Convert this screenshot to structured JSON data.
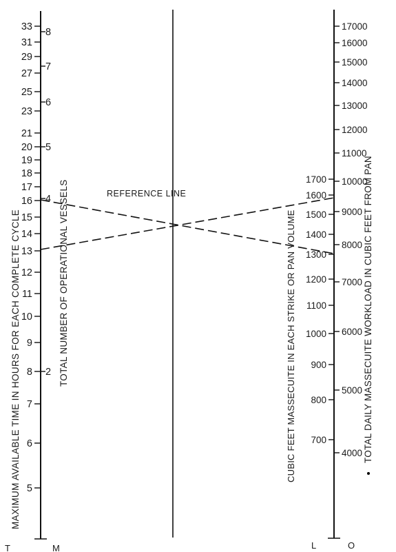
{
  "scales": {
    "T": {
      "letter": "T",
      "title": "MAXIMUM AVAILABLE TIME IN HOURS FOR EACH COMPLETE CYCLE",
      "ticks": [
        "33",
        "31",
        "29",
        "27",
        "25",
        "23",
        "21",
        "20",
        "19",
        "18",
        "17",
        "16",
        "15",
        "14",
        "13",
        "12",
        "11",
        "10",
        "9",
        "8",
        "7",
        "6",
        "5"
      ]
    },
    "M": {
      "letter": "M",
      "title": "TOTAL NUMBER OF OPERATIONAL VESSELS",
      "ticks": [
        "8",
        "7",
        "6",
        "5",
        "4",
        "2"
      ]
    },
    "L": {
      "letter": "L",
      "title": "CUBIC FEET MASSECUITE IN EACH STRIKE OR PAN VOLUME",
      "ticks": [
        "1700",
        "1600",
        "1500",
        "1400",
        "1300",
        "1200",
        "1100",
        "1000",
        "900",
        "800",
        "700"
      ]
    },
    "O": {
      "letter": "O",
      "title": "TOTAL DAILY MASSECUITE WORKLOAD IN CUBIC FEET FROM PAN",
      "ticks": [
        "17000",
        "16000",
        "15000",
        "14000",
        "13000",
        "12000",
        "11000",
        "10000",
        "9000",
        "8000",
        "7000",
        "6000",
        "5000",
        "4000"
      ]
    }
  },
  "reference_line": {
    "label": "REFERENCE LINE"
  }
}
